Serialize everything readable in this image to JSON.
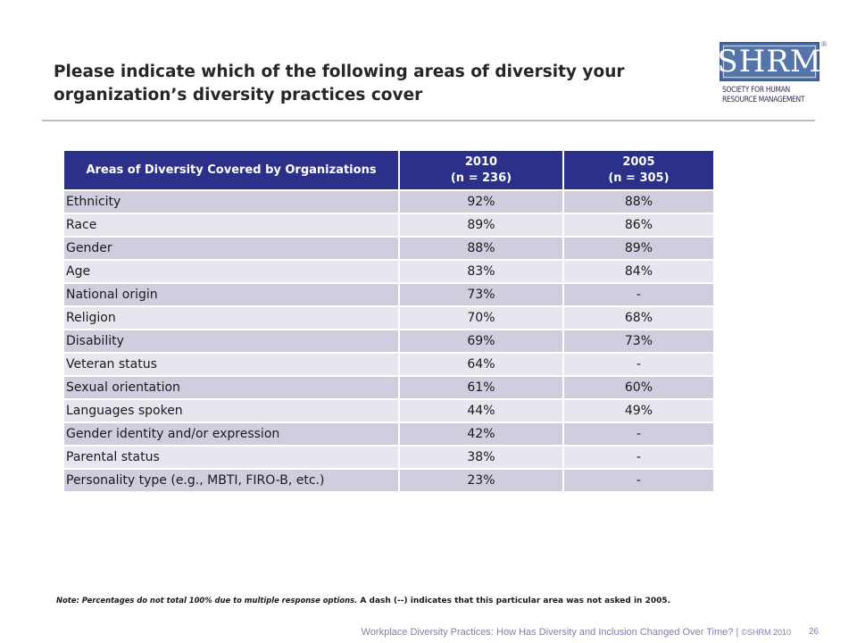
{
  "slide": {
    "title": "Please indicate which of the following areas of diversity your organization’s diversity practices cover"
  },
  "logo": {
    "mark": "SHRM",
    "registered": "®",
    "line1": "Society for Human",
    "line2": "Resource Management"
  },
  "table": {
    "header": {
      "col1": "Areas of Diversity Covered by Organizations",
      "col2_year": "2010",
      "col2_n": "(n = 236)",
      "col3_year": "2005",
      "col3_n": "(n = 305)"
    },
    "rows": [
      {
        "area": "Ethnicity",
        "v2010": "92%",
        "v2005": "88%"
      },
      {
        "area": "Race",
        "v2010": "89%",
        "v2005": "86%"
      },
      {
        "area": "Gender",
        "v2010": "88%",
        "v2005": "89%"
      },
      {
        "area": "Age",
        "v2010": "83%",
        "v2005": "84%"
      },
      {
        "area": "National origin",
        "v2010": "73%",
        "v2005": "-"
      },
      {
        "area": "Religion",
        "v2010": "70%",
        "v2005": "68%"
      },
      {
        "area": "Disability",
        "v2010": "69%",
        "v2005": "73%"
      },
      {
        "area": "Veteran status",
        "v2010": "64%",
        "v2005": "-"
      },
      {
        "area": "Sexual orientation",
        "v2010": "61%",
        "v2005": "60%"
      },
      {
        "area": "Languages spoken",
        "v2010": "44%",
        "v2005": "49%"
      },
      {
        "area": "Gender identity and/or expression",
        "v2010": "42%",
        "v2005": "-"
      },
      {
        "area": "Parental status",
        "v2010": "38%",
        "v2005": "-"
      },
      {
        "area": "Personality type (e.g., MBTI, FIRO-B, etc.)",
        "v2010": "23%",
        "v2005": "-"
      }
    ]
  },
  "note": {
    "part1": "Note: Percentages do not total 100% due to multiple response options.",
    "part2": " A dash (--) indicates that this particular area was not asked in 2005."
  },
  "footer": {
    "text": "Workplace Diversity Practices: How Has Diversity and Inclusion Changed Over Time?",
    "separator": " | ",
    "copyright": "©SHRM 2010",
    "page_number": "26"
  }
}
